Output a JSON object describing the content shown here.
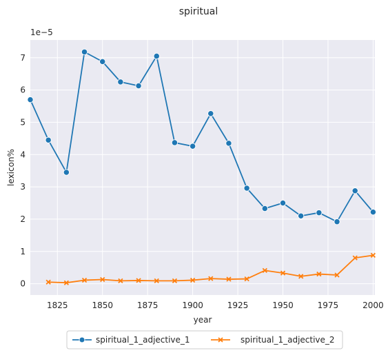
{
  "chart_data": {
    "type": "line",
    "title": "spiritual",
    "xlabel": "year",
    "ylabel": "lexicon%",
    "y_offset_label": "1e−5",
    "xlim": [
      1810,
      2001
    ],
    "ylim": [
      -0.35,
      7.55
    ],
    "xticks": [
      1825,
      1850,
      1875,
      1900,
      1925,
      1950,
      1975,
      2000
    ],
    "yticks": [
      0,
      1,
      2,
      3,
      4,
      5,
      6,
      7
    ],
    "grid": true,
    "legend_position": "bottom-center",
    "background": "#eaeaf2",
    "series": [
      {
        "name": "spiritual_1_adjective_1",
        "color": "#1f77b4",
        "marker": "circle",
        "x": [
          1810,
          1820,
          1830,
          1840,
          1850,
          1860,
          1870,
          1880,
          1890,
          1900,
          1910,
          1920,
          1930,
          1940,
          1950,
          1960,
          1970,
          1980,
          1990,
          2000
        ],
        "y": [
          5.7,
          4.45,
          3.45,
          7.18,
          6.88,
          6.25,
          6.13,
          7.05,
          4.37,
          4.26,
          5.27,
          4.35,
          2.96,
          2.33,
          2.5,
          2.1,
          2.2,
          1.92,
          2.88,
          2.22
        ]
      },
      {
        "name": "spiritual_1_adjective_2",
        "color": "#ff7f0e",
        "marker": "x",
        "x": [
          1820,
          1830,
          1840,
          1850,
          1860,
          1870,
          1880,
          1890,
          1900,
          1910,
          1920,
          1930,
          1940,
          1950,
          1960,
          1970,
          1980,
          1990,
          2000
        ],
        "y": [
          0.05,
          0.03,
          0.11,
          0.13,
          0.09,
          0.1,
          0.09,
          0.09,
          0.11,
          0.16,
          0.14,
          0.15,
          0.41,
          0.33,
          0.23,
          0.3,
          0.27,
          0.8,
          0.88
        ]
      }
    ]
  }
}
